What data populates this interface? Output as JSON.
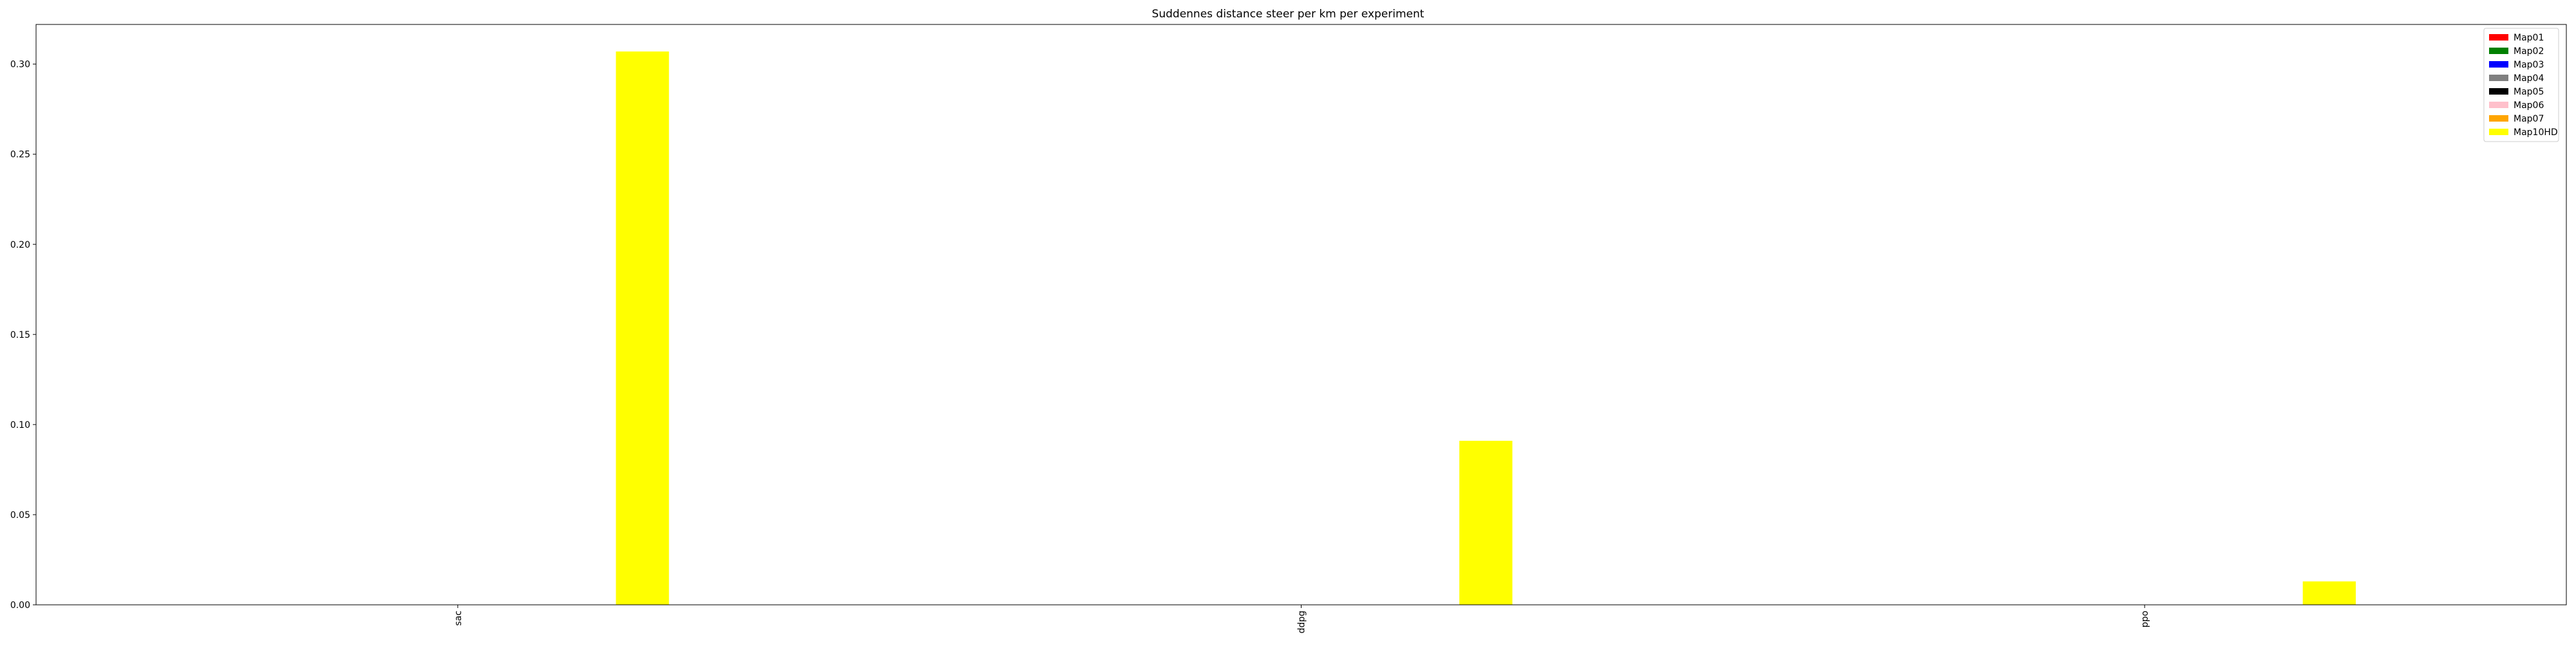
{
  "chart_data": {
    "type": "bar",
    "title": "Suddennes distance steer per km per experiment",
    "xlabel": "",
    "ylabel": "",
    "categories": [
      "sac",
      "ddpg",
      "ppo"
    ],
    "ylim": [
      0,
      0.322
    ],
    "yticks": [
      0.0,
      0.05,
      0.1,
      0.15,
      0.2,
      0.25,
      0.3
    ],
    "ytick_labels": [
      "0.00",
      "0.05",
      "0.10",
      "0.15",
      "0.20",
      "0.25",
      "0.30"
    ],
    "grid": false,
    "legend_position": "top-right",
    "series": [
      {
        "name": "Map01",
        "color": "#ff0000",
        "values": [
          0,
          0,
          0
        ]
      },
      {
        "name": "Map02",
        "color": "#008000",
        "values": [
          0,
          0,
          0
        ]
      },
      {
        "name": "Map03",
        "color": "#0000ff",
        "values": [
          0,
          0,
          0
        ]
      },
      {
        "name": "Map04",
        "color": "#808080",
        "values": [
          0,
          0,
          0
        ]
      },
      {
        "name": "Map05",
        "color": "#000000",
        "values": [
          0,
          0,
          0
        ]
      },
      {
        "name": "Map06",
        "color": "#ffc0cb",
        "values": [
          0,
          0,
          0
        ]
      },
      {
        "name": "Map07",
        "color": "#ffa500",
        "values": [
          0,
          0,
          0
        ]
      },
      {
        "name": "Map10HD",
        "color": "#ffff00",
        "values": [
          0.307,
          0.091,
          0.013
        ]
      }
    ]
  }
}
